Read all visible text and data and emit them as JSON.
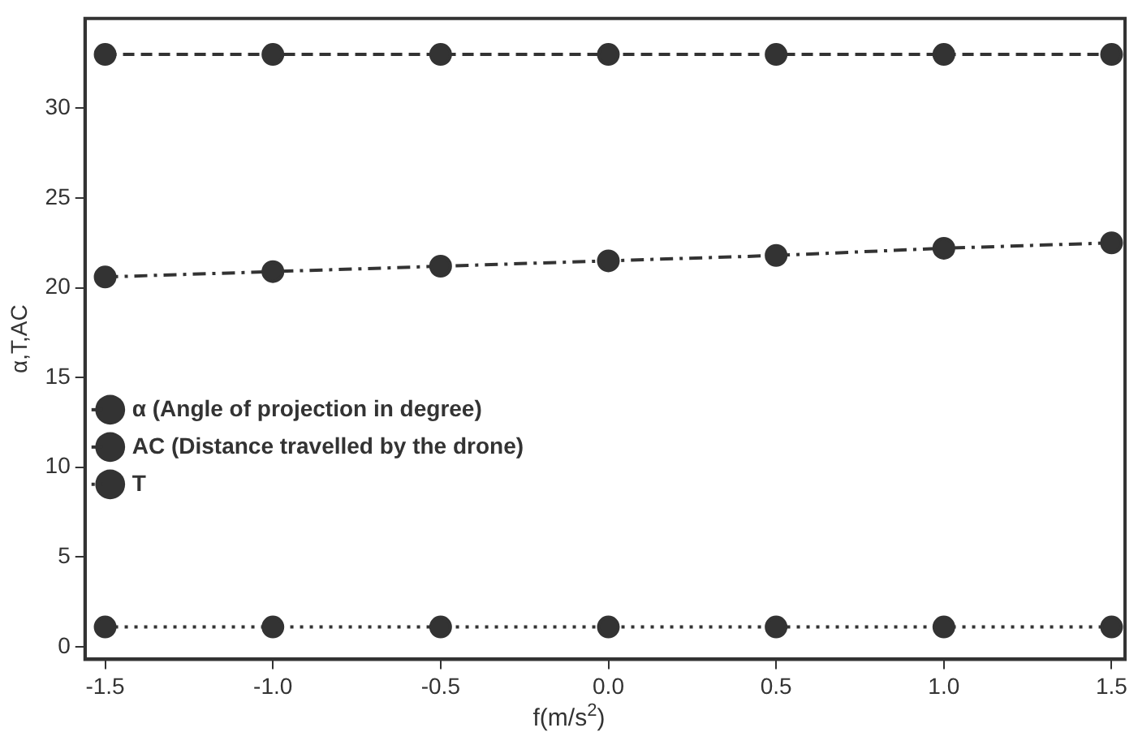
{
  "chart_data": {
    "type": "line",
    "xlabel": "f(m/s$^{2}$)",
    "ylabel": "α,T,AC",
    "x": [
      -1.5,
      -1.0,
      -0.5,
      0.0,
      0.5,
      1.0,
      1.5
    ],
    "series": [
      {
        "name": "α (Angle of projection in degree)",
        "color": "#333333",
        "line_style": "dashed",
        "values": [
          33,
          33,
          33,
          33,
          33,
          33,
          33
        ]
      },
      {
        "name": "AC (Distance travelled by the drone)",
        "color": "#333333",
        "line_style": "dashdot",
        "values": [
          20.6,
          20.9,
          21.2,
          21.5,
          21.8,
          22.2,
          22.5
        ]
      },
      {
        "name": "T",
        "color": "#333333",
        "line_style": "dotted",
        "values": [
          1.1,
          1.1,
          1.1,
          1.1,
          1.1,
          1.1,
          1.1
        ]
      }
    ],
    "xlim": [
      -1.56,
      1.54
    ],
    "xticks": [
      -1.5,
      {
        "value": -1,
        "label": "-1.0"
      },
      -0.5,
      {
        "value": 0,
        "label": "0.0"
      },
      0.5,
      {
        "value": 1,
        "label": "1.0"
      },
      1.5
    ],
    "ylim": [
      -0.7,
      35
    ],
    "yticks": [
      0,
      5,
      10,
      15,
      20,
      25,
      30
    ],
    "grid": false,
    "legend": "left",
    "marker": "circle"
  }
}
